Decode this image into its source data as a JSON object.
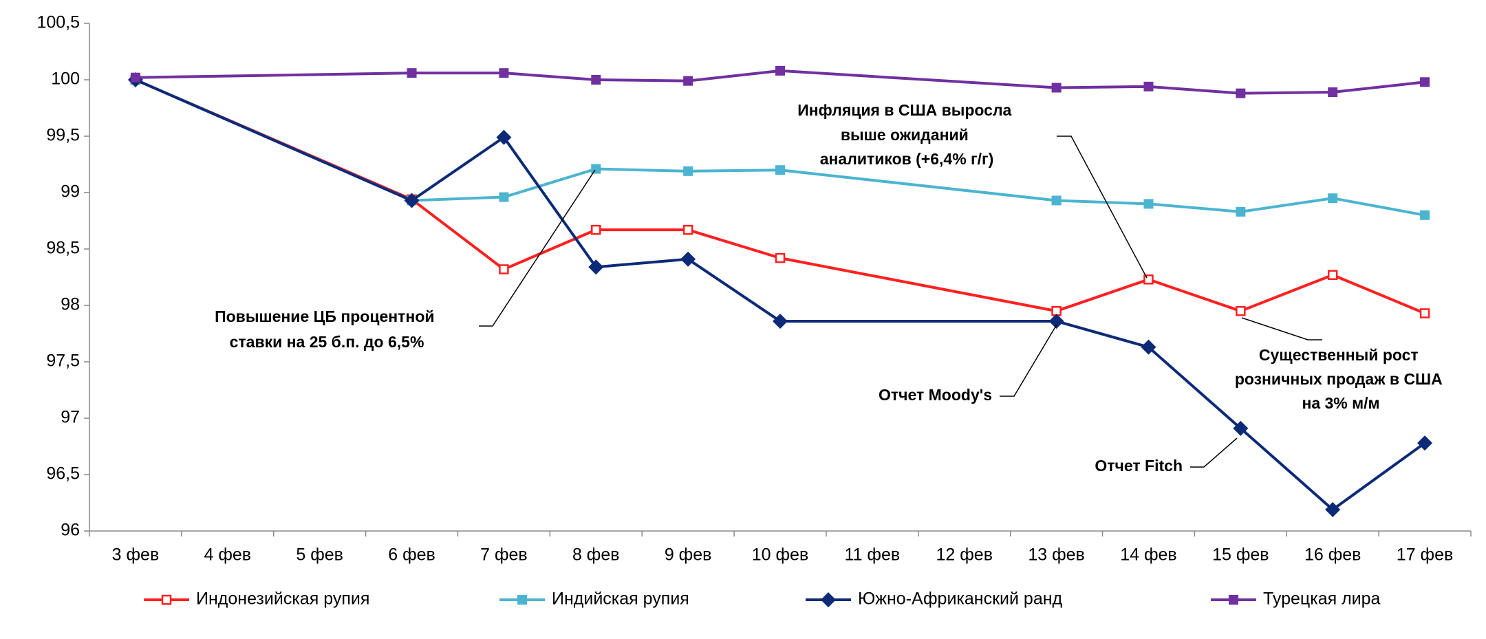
{
  "chart_data": {
    "type": "line",
    "categories": [
      "3 фев",
      "4 фев",
      "5 фев",
      "6 фев",
      "7 фев",
      "8 фев",
      "9 фев",
      "10 фев",
      "11 фев",
      "12 фев",
      "13 фев",
      "14 фев",
      "15 фев",
      "16 фев",
      "17 фев"
    ],
    "series": [
      {
        "name": "Индонезийская рупия",
        "color": "#ff2020",
        "marker": "open-square",
        "values": [
          100,
          null,
          null,
          98.94,
          98.32,
          98.67,
          98.67,
          98.42,
          null,
          null,
          97.95,
          98.23,
          97.95,
          98.27,
          97.93
        ]
      },
      {
        "name": "Индийская рупия",
        "color": "#4bb4d0",
        "marker": "square",
        "values": [
          100,
          null,
          null,
          98.93,
          98.96,
          99.21,
          99.19,
          99.2,
          null,
          null,
          98.93,
          98.9,
          98.83,
          98.95,
          98.8
        ]
      },
      {
        "name": "Южно-Африканский ранд",
        "color": "#0d2a78",
        "marker": "diamond",
        "values": [
          100,
          null,
          null,
          98.93,
          99.49,
          98.34,
          98.41,
          97.86,
          null,
          null,
          97.86,
          97.63,
          96.91,
          96.19,
          96.78
        ]
      },
      {
        "name": "Турецкая лира",
        "color": "#7030a0",
        "marker": "square",
        "values": [
          100.02,
          null,
          null,
          100.06,
          100.06,
          100.0,
          99.99,
          100.08,
          null,
          null,
          99.93,
          99.94,
          99.88,
          99.89,
          99.98
        ]
      }
    ],
    "ylim": [
      96,
      100.5
    ],
    "yticks": [
      96,
      {
        "value": 96.5,
        "label": "96,5"
      },
      97,
      {
        "value": 97.5,
        "label": "97,5"
      },
      98,
      {
        "value": 98.5,
        "label": "98,5"
      },
      99,
      {
        "value": 99.5,
        "label": "99,5"
      },
      100,
      {
        "value": 100.5,
        "label": "100,5"
      }
    ],
    "grid": false,
    "legend": "bottom",
    "annotations": [
      {
        "lines": [
          "Повышение ЦБ процентной",
          "ставки на 25 б.п. до 6,5%"
        ]
      },
      {
        "lines": [
          "Инфляция в США выросла",
          "выше ожиданий",
          "аналитиков (+6,4% г/г)"
        ]
      },
      {
        "lines": [
          "Отчет Moody's"
        ]
      },
      {
        "lines": [
          "Отчет Fitch"
        ]
      },
      {
        "lines": [
          "Существенный рост",
          "розничных продаж в США",
          "на 3% м/м"
        ]
      }
    ]
  }
}
